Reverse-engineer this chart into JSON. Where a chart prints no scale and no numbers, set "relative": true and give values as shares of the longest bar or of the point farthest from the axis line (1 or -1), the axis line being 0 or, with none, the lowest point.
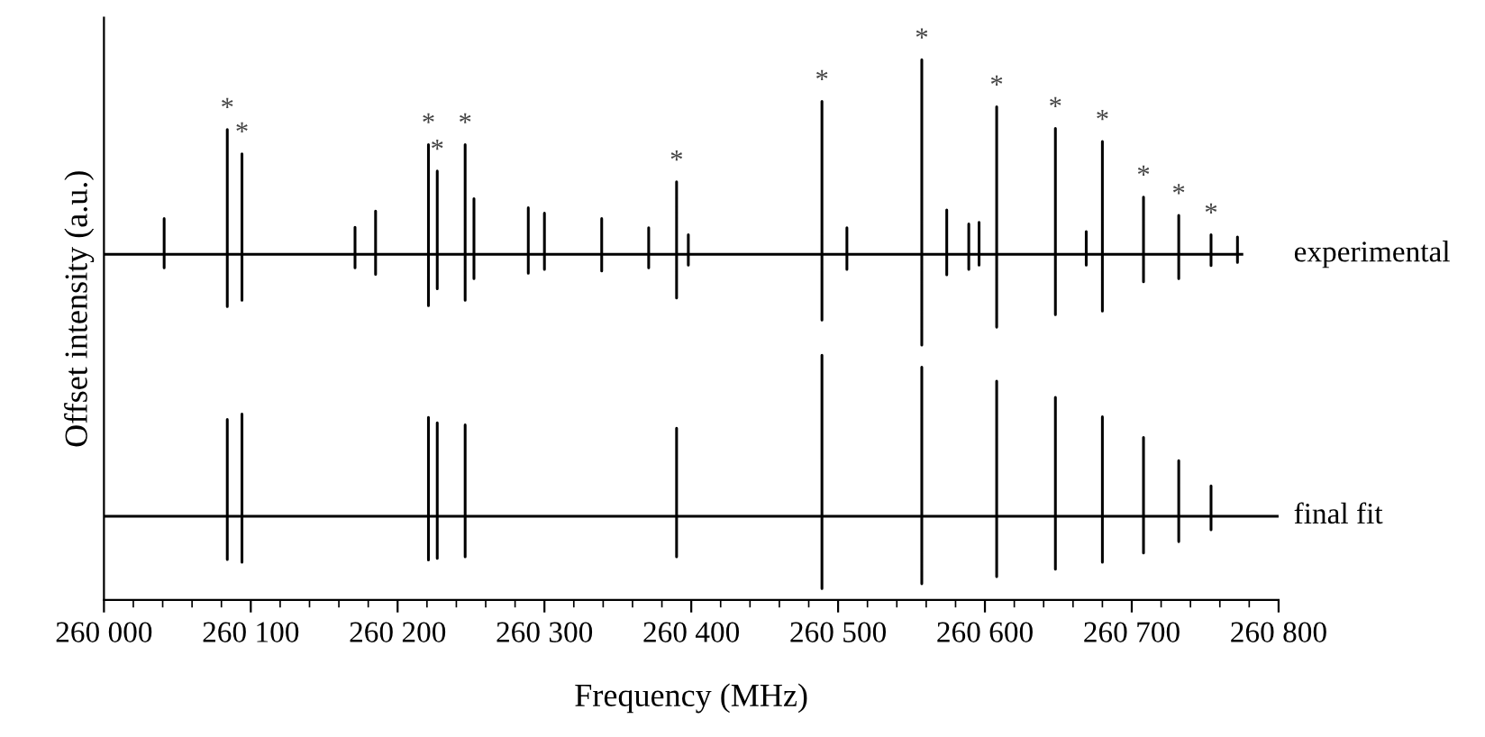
{
  "chart_data": {
    "type": "line",
    "relative": true,
    "xlabel": "Frequency (MHz)",
    "ylabel": "Offset intensity (a.u.)",
    "xlim": [
      260000,
      260800
    ],
    "xticks": [
      {
        "value": 260000,
        "label": "260 000"
      },
      {
        "value": 260020,
        "label": null
      },
      {
        "value": 260040,
        "label": null
      },
      {
        "value": 260060,
        "label": null
      },
      {
        "value": 260080,
        "label": null
      },
      {
        "value": 260100,
        "label": "260 100"
      },
      {
        "value": 260120,
        "label": null
      },
      {
        "value": 260140,
        "label": null
      },
      {
        "value": 260160,
        "label": null
      },
      {
        "value": 260180,
        "label": null
      },
      {
        "value": 260200,
        "label": "260 200"
      },
      {
        "value": 260220,
        "label": null
      },
      {
        "value": 260240,
        "label": null
      },
      {
        "value": 260260,
        "label": null
      },
      {
        "value": 260280,
        "label": null
      },
      {
        "value": 260300,
        "label": "260 300"
      },
      {
        "value": 260320,
        "label": null
      },
      {
        "value": 260340,
        "label": null
      },
      {
        "value": 260360,
        "label": null
      },
      {
        "value": 260380,
        "label": null
      },
      {
        "value": 260400,
        "label": "260 400"
      },
      {
        "value": 260420,
        "label": null
      },
      {
        "value": 260440,
        "label": null
      },
      {
        "value": 260460,
        "label": null
      },
      {
        "value": 260480,
        "label": null
      },
      {
        "value": 260500,
        "label": "260 500"
      },
      {
        "value": 260520,
        "label": null
      },
      {
        "value": 260540,
        "label": null
      },
      {
        "value": 260560,
        "label": null
      },
      {
        "value": 260580,
        "label": null
      },
      {
        "value": 260600,
        "label": "260 600"
      },
      {
        "value": 260620,
        "label": null
      },
      {
        "value": 260640,
        "label": null
      },
      {
        "value": 260660,
        "label": null
      },
      {
        "value": 260680,
        "label": null
      },
      {
        "value": 260700,
        "label": "260 700"
      },
      {
        "value": 260720,
        "label": null
      },
      {
        "value": 260740,
        "label": null
      },
      {
        "value": 260760,
        "label": null
      },
      {
        "value": 260780,
        "label": null
      },
      {
        "value": 260800,
        "label": "260 800"
      }
    ],
    "tick_labels": "x",
    "marker": "none",
    "line_style": "solid",
    "series": [
      {
        "name": "experimental",
        "color": "#000000",
        "x": [
          260000,
          260041,
          260041,
          260041,
          260041,
          260084,
          260084,
          260084,
          260084,
          260094,
          260094,
          260094,
          260094,
          260171,
          260171,
          260171,
          260171,
          260185,
          260185,
          260185,
          260185,
          260221,
          260221,
          260221,
          260221,
          260227,
          260227,
          260227,
          260227,
          260246,
          260246,
          260246,
          260246,
          260252,
          260252,
          260252,
          260252,
          260289,
          260289,
          260289,
          260289,
          260300,
          260300,
          260300,
          260300,
          260339,
          260339,
          260339,
          260339,
          260371,
          260371,
          260371,
          260371,
          260390,
          260390,
          260390,
          260390,
          260398,
          260398,
          260398,
          260398,
          260489,
          260489,
          260489,
          260489,
          260506,
          260506,
          260506,
          260506,
          260557,
          260557,
          260557,
          260557,
          260574,
          260574,
          260574,
          260574,
          260589,
          260589,
          260589,
          260589,
          260596,
          260596,
          260596,
          260596,
          260608,
          260608,
          260608,
          260608,
          260648,
          260648,
          260648,
          260648,
          260669,
          260669,
          260669,
          260669,
          260680,
          260680,
          260680,
          260680,
          260708,
          260708,
          260708,
          260708,
          260732,
          260732,
          260732,
          260732,
          260754,
          260754,
          260754,
          260754,
          260772,
          260772,
          260772,
          260772,
          260775
        ],
        "values": [
          0.64,
          0.64,
          0.706,
          0.615,
          0.64,
          0.64,
          0.871,
          0.543,
          0.64,
          0.64,
          0.826,
          0.555,
          0.64,
          0.64,
          0.69,
          0.615,
          0.64,
          0.64,
          0.72,
          0.603,
          0.64,
          0.64,
          0.843,
          0.545,
          0.64,
          0.64,
          0.794,
          0.576,
          0.64,
          0.64,
          0.843,
          0.555,
          0.64,
          0.64,
          0.743,
          0.595,
          0.64,
          0.64,
          0.726,
          0.605,
          0.64,
          0.64,
          0.716,
          0.612,
          0.64,
          0.64,
          0.706,
          0.609,
          0.64,
          0.64,
          0.689,
          0.615,
          0.64,
          0.64,
          0.774,
          0.559,
          0.64,
          0.64,
          0.676,
          0.62,
          0.64,
          0.64,
          0.923,
          0.518,
          0.64,
          0.64,
          0.689,
          0.612,
          0.64,
          0.64,
          1.0,
          0.472,
          0.64,
          0.64,
          0.722,
          0.602,
          0.64,
          0.64,
          0.696,
          0.612,
          0.64,
          0.64,
          0.699,
          0.62,
          0.64,
          0.64,
          0.913,
          0.505,
          0.64,
          0.64,
          0.873,
          0.528,
          0.64,
          0.64,
          0.682,
          0.62,
          0.64,
          0.64,
          0.849,
          0.535,
          0.64,
          0.64,
          0.746,
          0.589,
          0.64,
          0.64,
          0.712,
          0.595,
          0.64,
          0.64,
          0.676,
          0.619,
          0.64,
          0.64,
          0.672,
          0.625,
          0.64,
          0.64
        ]
      },
      {
        "name": "final fit",
        "color": "#000000",
        "x": [
          260000,
          260084,
          260084,
          260084,
          260084,
          260094,
          260094,
          260094,
          260094,
          260221,
          260221,
          260221,
          260221,
          260227,
          260227,
          260227,
          260227,
          260246,
          260246,
          260246,
          260246,
          260390,
          260390,
          260390,
          260390,
          260489,
          260489,
          260489,
          260489,
          260557,
          260557,
          260557,
          260557,
          260608,
          260608,
          260608,
          260608,
          260648,
          260648,
          260648,
          260648,
          260680,
          260680,
          260680,
          260680,
          260708,
          260708,
          260708,
          260708,
          260732,
          260732,
          260732,
          260732,
          260754,
          260754,
          260754,
          260754,
          260800
        ],
        "values": [
          0.155,
          0.155,
          0.334,
          0.075,
          0.155,
          0.155,
          0.344,
          0.07,
          0.155,
          0.155,
          0.338,
          0.074,
          0.155,
          0.155,
          0.328,
          0.077,
          0.155,
          0.155,
          0.324,
          0.08,
          0.155,
          0.155,
          0.318,
          0.08,
          0.155,
          0.155,
          0.453,
          0.021,
          0.155,
          0.155,
          0.431,
          0.03,
          0.155,
          0.155,
          0.405,
          0.043,
          0.155,
          0.155,
          0.375,
          0.057,
          0.155,
          0.155,
          0.339,
          0.07,
          0.155,
          0.155,
          0.301,
          0.087,
          0.155,
          0.155,
          0.258,
          0.108,
          0.155,
          0.155,
          0.211,
          0.13,
          0.155,
          0.155
        ]
      }
    ],
    "annotations": [
      {
        "text": "*",
        "x": 260084,
        "y": 0.871
      },
      {
        "text": "*",
        "x": 260094,
        "y": 0.826
      },
      {
        "text": "*",
        "x": 260221,
        "y": 0.843
      },
      {
        "text": "*",
        "x": 260227,
        "y": 0.794
      },
      {
        "text": "*",
        "x": 260246,
        "y": 0.843
      },
      {
        "text": "*",
        "x": 260390,
        "y": 0.774
      },
      {
        "text": "*",
        "x": 260489,
        "y": 0.923
      },
      {
        "text": "*",
        "x": 260557,
        "y": 1.0
      },
      {
        "text": "*",
        "x": 260608,
        "y": 0.913
      },
      {
        "text": "*",
        "x": 260648,
        "y": 0.873
      },
      {
        "text": "*",
        "x": 260680,
        "y": 0.849
      },
      {
        "text": "*",
        "x": 260708,
        "y": 0.746
      },
      {
        "text": "*",
        "x": 260732,
        "y": 0.712
      },
      {
        "text": "*",
        "x": 260754,
        "y": 0.676
      }
    ]
  }
}
